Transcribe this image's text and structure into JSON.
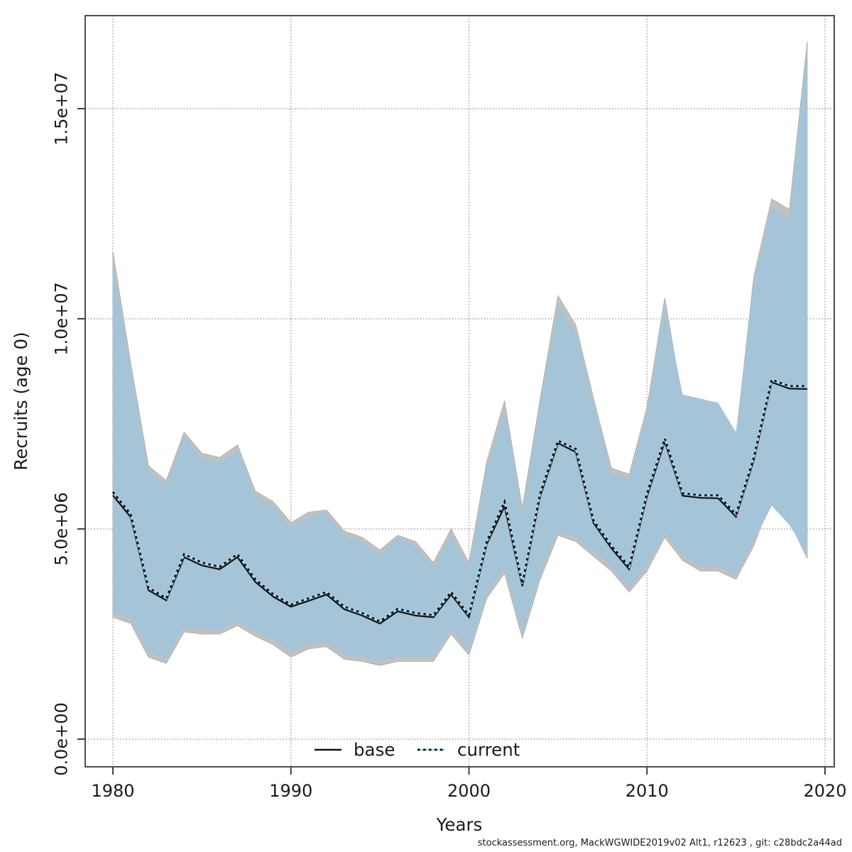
{
  "footer": "stockassessment.org, MackWGWIDE2019v02 Alt1, r12623 , git: c28bdc2a44ad",
  "chart_data": {
    "type": "line",
    "title": "",
    "xlabel": "Years",
    "ylabel": "Recruits (age 0)",
    "grid": true,
    "legend_position": "bottom-center-inside",
    "xlim": [
      1978.4,
      2020.6
    ],
    "ylim": [
      -660000,
      17200000
    ],
    "x_ticks": [
      {
        "value": 1980,
        "label": "1980"
      },
      {
        "value": 1990,
        "label": "1990"
      },
      {
        "value": 2000,
        "label": "2000"
      },
      {
        "value": 2010,
        "label": "2010"
      },
      {
        "value": 2020,
        "label": "2020"
      }
    ],
    "y_ticks": [
      {
        "value": 0,
        "label": "0.0e+00"
      },
      {
        "value": 5000000,
        "label": "5.0e+06"
      },
      {
        "value": 10000000,
        "label": "1.0e+07"
      },
      {
        "value": 15000000,
        "label": "1.5e+07"
      }
    ],
    "years": [
      1980,
      1981,
      1982,
      1983,
      1984,
      1985,
      1986,
      1987,
      1988,
      1989,
      1990,
      1991,
      1992,
      1993,
      1994,
      1995,
      1996,
      1997,
      1998,
      1999,
      2000,
      2001,
      2002,
      2003,
      2004,
      2005,
      2006,
      2007,
      2008,
      2009,
      2010,
      2011,
      2012,
      2013,
      2014,
      2015,
      2016,
      2017,
      2018,
      2019
    ],
    "series": [
      {
        "name": "base",
        "line_style": "solid",
        "line_color": "#111111",
        "band_color": "#c3c1be",
        "median": [
          5800000,
          5280000,
          3540000,
          3300000,
          4330000,
          4130000,
          4040000,
          4330000,
          3740000,
          3390000,
          3150000,
          3290000,
          3440000,
          3090000,
          2940000,
          2750000,
          3040000,
          2940000,
          2900000,
          3440000,
          2900000,
          4640000,
          5540000,
          3640000,
          5780000,
          7040000,
          6830000,
          5140000,
          4540000,
          4040000,
          5780000,
          7080000,
          5790000,
          5740000,
          5730000,
          5290000,
          6640000,
          8490000,
          8340000,
          8330000
        ],
        "lo": [
          2900000,
          2750000,
          1950000,
          1800000,
          2550000,
          2500000,
          2500000,
          2700000,
          2450000,
          2250000,
          1950000,
          2150000,
          2200000,
          1900000,
          1850000,
          1750000,
          1850000,
          1850000,
          1850000,
          2500000,
          2000000,
          3350000,
          3950000,
          2400000,
          3800000,
          4850000,
          4700000,
          4350000,
          4000000,
          3500000,
          4000000,
          4800000,
          4250000,
          4000000,
          4000000,
          3800000,
          4600000,
          5750000,
          5200000,
          4300000
        ],
        "hi": [
          11600000,
          8950000,
          6500000,
          6150000,
          7300000,
          6800000,
          6700000,
          7000000,
          5900000,
          5650000,
          5150000,
          5400000,
          5450000,
          4950000,
          4800000,
          4500000,
          4850000,
          4700000,
          4200000,
          5000000,
          4200000,
          6600000,
          8050000,
          5500000,
          8100000,
          10550000,
          9850000,
          8100000,
          6450000,
          6300000,
          7900000,
          10500000,
          8000000,
          7900000,
          7850000,
          7150000,
          11000000,
          12850000,
          12600000,
          16600000
        ]
      },
      {
        "name": "current",
        "line_style": "dotted",
        "line_color": "#0a0a0a",
        "line_underlay_color": "#a9d6ef",
        "band_color": "#a6c4d7",
        "median": [
          5880000,
          5350000,
          3600000,
          3350000,
          4400000,
          4200000,
          4100000,
          4400000,
          3800000,
          3450000,
          3200000,
          3350000,
          3500000,
          3150000,
          3000000,
          2800000,
          3100000,
          3000000,
          2950000,
          3500000,
          2950000,
          4700000,
          5650000,
          3700000,
          5850000,
          7100000,
          6900000,
          5200000,
          4600000,
          4100000,
          5850000,
          7150000,
          5850000,
          5800000,
          5800000,
          5350000,
          6700000,
          8550000,
          8400000,
          8400000
        ],
        "lo": [
          3000000,
          2850000,
          2050000,
          1900000,
          2650000,
          2600000,
          2600000,
          2800000,
          2550000,
          2350000,
          2050000,
          2250000,
          2300000,
          2000000,
          1950000,
          1850000,
          1950000,
          1950000,
          1950000,
          2600000,
          2100000,
          3450000,
          4050000,
          2500000,
          3900000,
          4950000,
          4800000,
          4450000,
          4100000,
          3600000,
          4100000,
          4900000,
          4350000,
          4100000,
          4100000,
          3900000,
          4700000,
          5550000,
          5100000,
          4400000
        ],
        "hi": [
          11400000,
          8800000,
          6400000,
          6050000,
          7250000,
          6700000,
          6600000,
          6900000,
          5800000,
          5550000,
          5050000,
          5300000,
          5400000,
          4850000,
          4700000,
          4400000,
          4800000,
          4600000,
          4100000,
          4900000,
          4100000,
          6500000,
          7900000,
          5400000,
          8000000,
          10350000,
          9700000,
          8000000,
          6350000,
          6200000,
          7800000,
          10300000,
          8200000,
          8100000,
          8000000,
          7300000,
          10900000,
          12650000,
          12400000,
          16500000
        ]
      }
    ],
    "legend": [
      "base",
      "current"
    ]
  }
}
